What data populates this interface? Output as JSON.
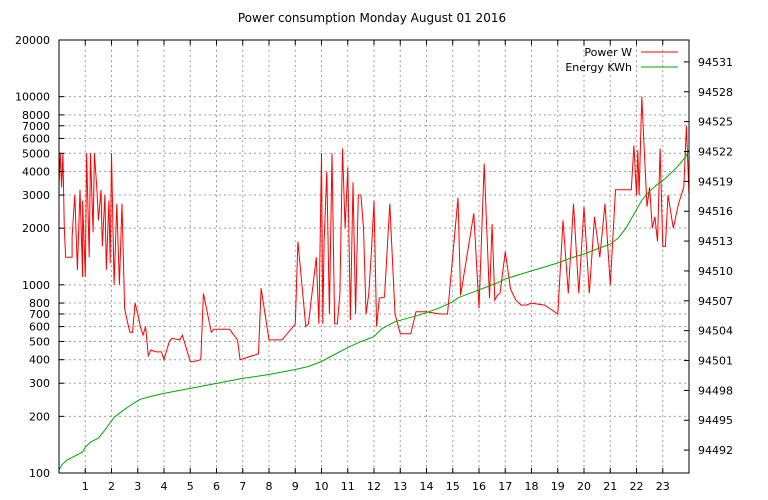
{
  "chart_data": {
    "type": "line",
    "title": "Power consumption Monday August 01 2016",
    "xlabel": "",
    "ylabel": "",
    "y2label": "",
    "grid": true,
    "legend_position": "top-right",
    "x_range": [
      0,
      24
    ],
    "x_ticks": [
      1,
      2,
      3,
      4,
      5,
      6,
      7,
      8,
      9,
      10,
      11,
      12,
      13,
      14,
      15,
      16,
      17,
      18,
      19,
      20,
      21,
      22,
      23
    ],
    "y_scale": "log",
    "y_range": [
      100,
      20000
    ],
    "y_ticks": [
      {
        "value": 100,
        "label": "100"
      },
      {
        "value": 200,
        "label": "200"
      },
      {
        "value": 300,
        "label": "300"
      },
      {
        "value": 400,
        "label": "400"
      },
      {
        "value": 500,
        "label": "500"
      },
      {
        "value": 600,
        "label": "600"
      },
      {
        "value": 700,
        "label": "700"
      },
      {
        "value": 800,
        "label": "800"
      },
      {
        "value": 1000,
        "label": "1000"
      },
      {
        "value": 2000,
        "label": "2000"
      },
      {
        "value": 3000,
        "label": "3000"
      },
      {
        "value": 4000,
        "label": "4000"
      },
      {
        "value": 5000,
        "label": "5000"
      },
      {
        "value": 6000,
        "label": "6000"
      },
      {
        "value": 7000,
        "label": "7000"
      },
      {
        "value": 8000,
        "label": "8000"
      },
      {
        "value": 10000,
        "label": "10000"
      },
      {
        "value": 20000,
        "label": "20000"
      }
    ],
    "y2_range": [
      94489.7,
      94533.2
    ],
    "y2_ticks": [
      94492,
      94495,
      94498,
      94501,
      94504,
      94507,
      94510,
      94513,
      94516,
      94519,
      94522,
      94525,
      94528,
      94531
    ],
    "series": [
      {
        "name": "Power W",
        "axis": "y",
        "color": "#ff0000",
        "x": [
          0.0,
          0.05,
          0.1,
          0.15,
          0.2,
          0.25,
          0.3,
          0.35,
          0.4,
          0.5,
          0.5,
          0.6,
          0.7,
          0.8,
          0.9,
          0.9,
          1.0,
          1.05,
          1.15,
          1.2,
          1.3,
          1.35,
          1.45,
          1.5,
          1.6,
          1.65,
          1.75,
          1.8,
          1.9,
          1.95,
          2.0,
          2.1,
          2.2,
          2.3,
          2.4,
          2.5,
          2.6,
          2.7,
          2.8,
          2.9,
          3.0,
          3.1,
          3.2,
          3.3,
          3.4,
          3.5,
          3.7,
          3.9,
          4.0,
          4.2,
          4.3,
          4.6,
          4.7,
          5.0,
          5.1,
          5.4,
          5.5,
          5.8,
          5.9,
          6.4,
          6.5,
          6.8,
          6.9,
          7.6,
          7.7,
          8.0,
          8.1,
          8.4,
          8.5,
          9.0,
          9.1,
          9.4,
          9.5,
          9.8,
          9.9,
          10.0,
          10.05,
          10.1,
          10.2,
          10.3,
          10.4,
          10.5,
          10.6,
          10.7,
          10.8,
          10.9,
          11.0,
          11.1,
          11.2,
          11.3,
          11.4,
          11.5,
          11.6,
          11.7,
          11.8,
          11.9,
          12.0,
          12.1,
          12.2,
          12.4,
          12.6,
          12.8,
          13.0,
          13.2,
          13.4,
          13.6,
          13.8,
          14.0,
          14.5,
          14.8,
          15.2,
          15.3,
          15.8,
          16.0,
          16.2,
          16.4,
          16.5,
          16.6,
          16.7,
          16.8,
          17.0,
          17.2,
          17.4,
          17.6,
          17.8,
          18.0,
          18.5,
          19.0,
          19.2,
          19.4,
          19.6,
          19.8,
          20.0,
          20.2,
          20.4,
          20.6,
          20.8,
          21.0,
          21.2,
          21.4,
          21.6,
          21.8,
          21.9,
          22.0,
          22.05,
          22.1,
          22.2,
          22.3,
          22.4,
          22.5,
          22.6,
          22.7,
          22.8,
          22.9,
          23.0,
          23.1,
          23.2,
          23.4,
          23.6,
          23.8,
          23.9,
          24.0
        ],
        "values": [
          3400,
          5000,
          3300,
          5000,
          2000,
          1400,
          1400,
          1400,
          1400,
          1400,
          1800,
          3000,
          1200,
          3200,
          1100,
          2800,
          1100,
          5000,
          1400,
          5000,
          1900,
          5000,
          3100,
          2200,
          3200,
          1600,
          3000,
          1200,
          2800,
          1300,
          5000,
          1000,
          2700,
          1000,
          2700,
          750,
          640,
          560,
          560,
          800,
          700,
          600,
          540,
          600,
          420,
          450,
          440,
          440,
          400,
          500,
          520,
          510,
          540,
          390,
          390,
          400,
          900,
          560,
          580,
          580,
          580,
          510,
          400,
          430,
          960,
          510,
          510,
          510,
          510,
          620,
          1700,
          600,
          620,
          1400,
          620,
          5000,
          620,
          1700,
          4000,
          700,
          5000,
          620,
          620,
          900,
          5300,
          2000,
          4200,
          650,
          3500,
          700,
          3000,
          3000,
          2000,
          700,
          900,
          1500,
          2800,
          600,
          850,
          860,
          2700,
          700,
          550,
          550,
          550,
          720,
          720,
          720,
          700,
          700,
          2900,
          880,
          2400,
          750,
          4400,
          850,
          2100,
          830,
          880,
          900,
          1500,
          950,
          830,
          780,
          780,
          800,
          780,
          700,
          2200,
          900,
          2700,
          900,
          2600,
          900,
          2300,
          1400,
          2700,
          1000,
          3200,
          3200,
          3200,
          3200,
          5500,
          3000,
          5200,
          3000,
          10000,
          5000,
          2600,
          3300,
          2000,
          2300,
          1700,
          5300,
          1600,
          1600,
          3000,
          2000,
          2700,
          3300,
          7000,
          3000
        ]
      },
      {
        "name": "Energy KWh",
        "axis": "y2",
        "color": "#00aa00",
        "x": [
          0.0,
          0.1,
          0.3,
          0.6,
          0.9,
          1.0,
          1.2,
          1.5,
          1.8,
          2.1,
          2.5,
          2.9,
          3.1,
          3.5,
          4.0,
          5.0,
          6.0,
          7.0,
          8.0,
          9.0,
          9.5,
          10.0,
          10.5,
          11.0,
          11.5,
          12.0,
          12.3,
          12.8,
          13.5,
          14.0,
          14.5,
          15.0,
          15.2,
          15.5,
          15.8,
          16.0,
          16.3,
          16.7,
          17.0,
          17.5,
          18.0,
          18.5,
          19.0,
          19.5,
          20.0,
          20.5,
          21.0,
          21.3,
          21.6,
          21.9,
          22.2,
          22.5,
          22.8,
          23.1,
          23.3,
          23.5,
          23.7,
          23.9,
          24.0
        ],
        "values": [
          94490.0,
          94490.5,
          94491.0,
          94491.4,
          94491.8,
          94492.3,
          94492.8,
          94493.2,
          94494.2,
          94495.3,
          94496.1,
          94496.8,
          94497.1,
          94497.4,
          94497.7,
          94498.2,
          94498.7,
          94499.2,
          94499.6,
          94500.1,
          94500.4,
          94500.9,
          94501.6,
          94502.3,
          94502.9,
          94503.4,
          94504.2,
          94504.9,
          94505.4,
          94505.8,
          94506.3,
          94506.9,
          94507.3,
          94507.6,
          94507.9,
          94508.1,
          94508.4,
          94508.8,
          94509.2,
          94509.6,
          94510.0,
          94510.4,
          94510.8,
          94511.3,
          94511.7,
          94512.2,
          94512.7,
          94513.3,
          94514.3,
          94515.7,
          94517.1,
          94518.0,
          94518.7,
          94519.3,
          94519.8,
          94520.3,
          94520.9,
          94521.6,
          94522.2
        ]
      }
    ]
  }
}
